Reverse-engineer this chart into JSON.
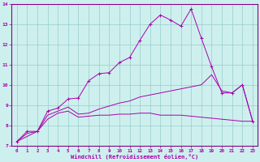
{
  "xlabel": "Windchill (Refroidissement éolien,°C)",
  "bg_color": "#cdf0ee",
  "line_color": "#aa00aa",
  "grid_color": "#99cccc",
  "spine_color": "#880088",
  "xlim": [
    -0.5,
    23.5
  ],
  "ylim": [
    7,
    14
  ],
  "xticks": [
    0,
    1,
    2,
    3,
    4,
    5,
    6,
    7,
    8,
    9,
    10,
    11,
    12,
    13,
    14,
    15,
    16,
    17,
    18,
    19,
    20,
    21,
    22,
    23
  ],
  "yticks": [
    7,
    8,
    9,
    10,
    11,
    12,
    13,
    14
  ],
  "line1_x": [
    0,
    1,
    2,
    3,
    4,
    5,
    6,
    7,
    8,
    9,
    10,
    11,
    12,
    13,
    14,
    15,
    16,
    17,
    18,
    19,
    20,
    21,
    22,
    23
  ],
  "line1_y": [
    7.2,
    7.7,
    7.7,
    8.7,
    8.85,
    9.3,
    9.35,
    10.2,
    10.55,
    10.6,
    11.1,
    11.35,
    12.2,
    13.0,
    13.45,
    13.2,
    12.9,
    13.75,
    12.3,
    10.9,
    9.6,
    9.6,
    10.0,
    8.2
  ],
  "line2_x": [
    0,
    2,
    3,
    4,
    5,
    6,
    7,
    8,
    9,
    10,
    11,
    12,
    13,
    14,
    15,
    16,
    17,
    18,
    19,
    20,
    21,
    22,
    23
  ],
  "line2_y": [
    7.2,
    7.7,
    8.5,
    8.7,
    8.9,
    8.55,
    8.6,
    8.8,
    8.95,
    9.1,
    9.2,
    9.4,
    9.5,
    9.6,
    9.7,
    9.8,
    9.9,
    10.0,
    10.5,
    9.7,
    9.6,
    10.0,
    8.2
  ],
  "line3_x": [
    0,
    1,
    2,
    3,
    4,
    5,
    6,
    7,
    8,
    9,
    10,
    11,
    12,
    13,
    14,
    15,
    16,
    17,
    18,
    19,
    20,
    21,
    22,
    23
  ],
  "line3_y": [
    7.2,
    7.6,
    7.7,
    8.3,
    8.6,
    8.7,
    8.4,
    8.45,
    8.5,
    8.5,
    8.55,
    8.55,
    8.6,
    8.6,
    8.5,
    8.5,
    8.5,
    8.45,
    8.4,
    8.35,
    8.3,
    8.25,
    8.2,
    8.2
  ]
}
